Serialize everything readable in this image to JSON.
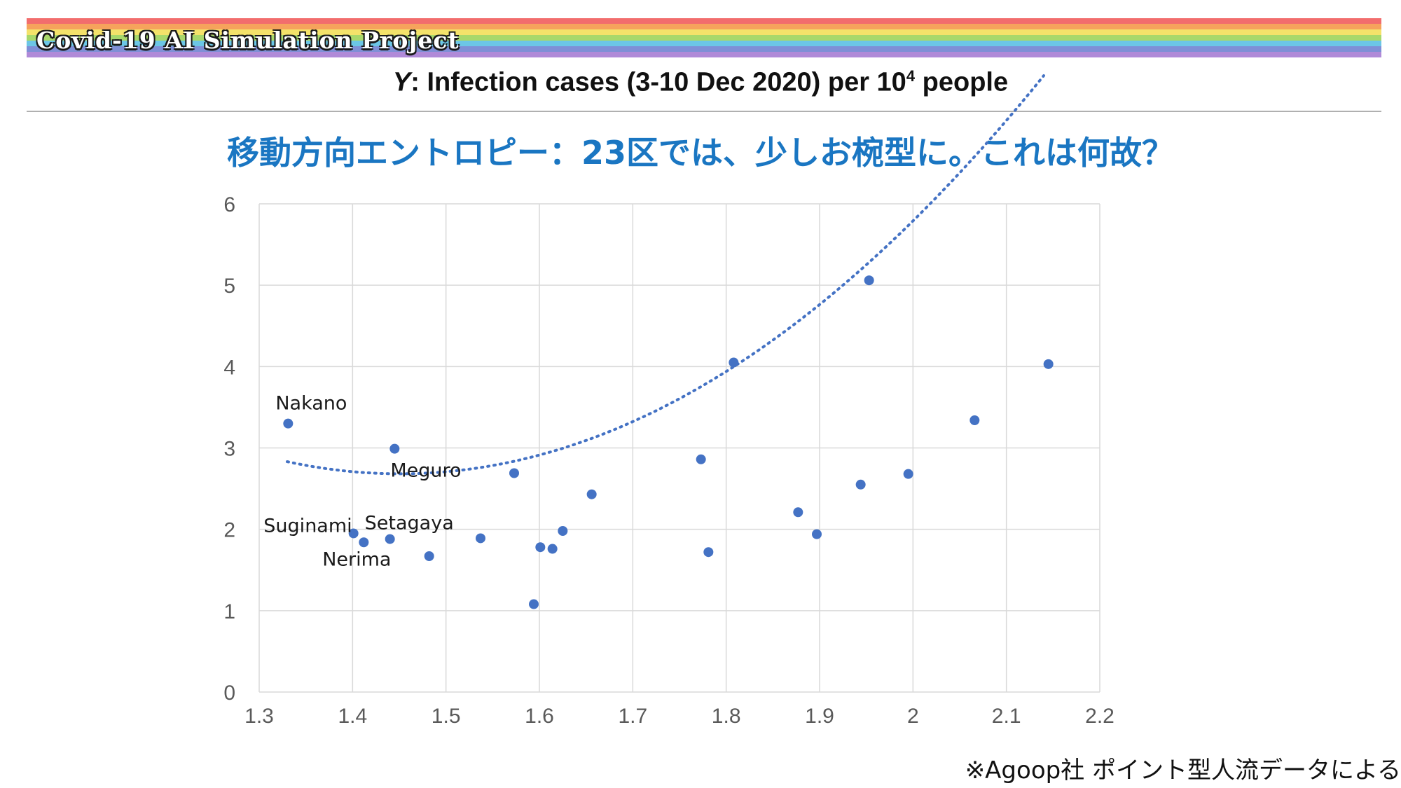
{
  "banner": {
    "title": "Covid-19 AI Simulation Project",
    "stripe_colors": [
      "#f26d6d",
      "#f6a35c",
      "#f4e26a",
      "#a8d86b",
      "#6cc6e6",
      "#7f8fd6",
      "#b08ad8"
    ]
  },
  "subtitle": {
    "prefix": "Y",
    "text_before": ": Infection cases (3-10 Dec 2020) per 10",
    "superscript": "4",
    "text_after": " people"
  },
  "heading": "移動方向エントロピー：23区では、少しお椀型に。これは何故？",
  "source_note": "※Agoop社 ポイント型人流データによる",
  "colors": {
    "accent": "#1a76c2",
    "point": "#4472c4",
    "grid": "#d9d9d9",
    "axis_text": "#595959"
  },
  "chart_data": {
    "type": "scatter",
    "xlim": [
      1.3,
      2.2
    ],
    "ylim": [
      0,
      6
    ],
    "x_ticks": [
      "1.3",
      "1.4",
      "1.5",
      "1.6",
      "1.7",
      "1.8",
      "1.9",
      "2",
      "2.1",
      "2.2"
    ],
    "y_ticks": [
      "0",
      "1",
      "2",
      "3",
      "4",
      "5",
      "6"
    ],
    "grid": true,
    "trendline": {
      "type": "polynomial-2",
      "style": "dotted",
      "from_x": 1.33,
      "to_x": 2.14,
      "coefficients": [
        24.33,
        -29.85,
        10.29
      ]
    },
    "points": [
      {
        "x": 1.331,
        "y": 3.3,
        "label": "Nakano"
      },
      {
        "x": 1.401,
        "y": 1.95,
        "label": "Suginami"
      },
      {
        "x": 1.412,
        "y": 1.84,
        "label": "Nerima"
      },
      {
        "x": 1.44,
        "y": 1.88,
        "label": "Setagaya"
      },
      {
        "x": 1.445,
        "y": 2.99,
        "label": "Meguro"
      },
      {
        "x": 1.482,
        "y": 1.67,
        "label": ""
      },
      {
        "x": 1.537,
        "y": 1.89,
        "label": ""
      },
      {
        "x": 1.573,
        "y": 2.69,
        "label": ""
      },
      {
        "x": 1.594,
        "y": 1.08,
        "label": ""
      },
      {
        "x": 1.601,
        "y": 1.78,
        "label": ""
      },
      {
        "x": 1.614,
        "y": 1.76,
        "label": ""
      },
      {
        "x": 1.625,
        "y": 1.98,
        "label": ""
      },
      {
        "x": 1.656,
        "y": 2.43,
        "label": ""
      },
      {
        "x": 1.773,
        "y": 2.86,
        "label": ""
      },
      {
        "x": 1.781,
        "y": 1.72,
        "label": ""
      },
      {
        "x": 1.808,
        "y": 4.05,
        "label": ""
      },
      {
        "x": 1.877,
        "y": 2.21,
        "label": ""
      },
      {
        "x": 1.897,
        "y": 1.94,
        "label": ""
      },
      {
        "x": 1.944,
        "y": 2.55,
        "label": ""
      },
      {
        "x": 1.953,
        "y": 5.06,
        "label": ""
      },
      {
        "x": 1.995,
        "y": 2.68,
        "label": ""
      },
      {
        "x": 2.066,
        "y": 3.34,
        "label": ""
      },
      {
        "x": 2.145,
        "y": 4.03,
        "label": ""
      }
    ]
  }
}
